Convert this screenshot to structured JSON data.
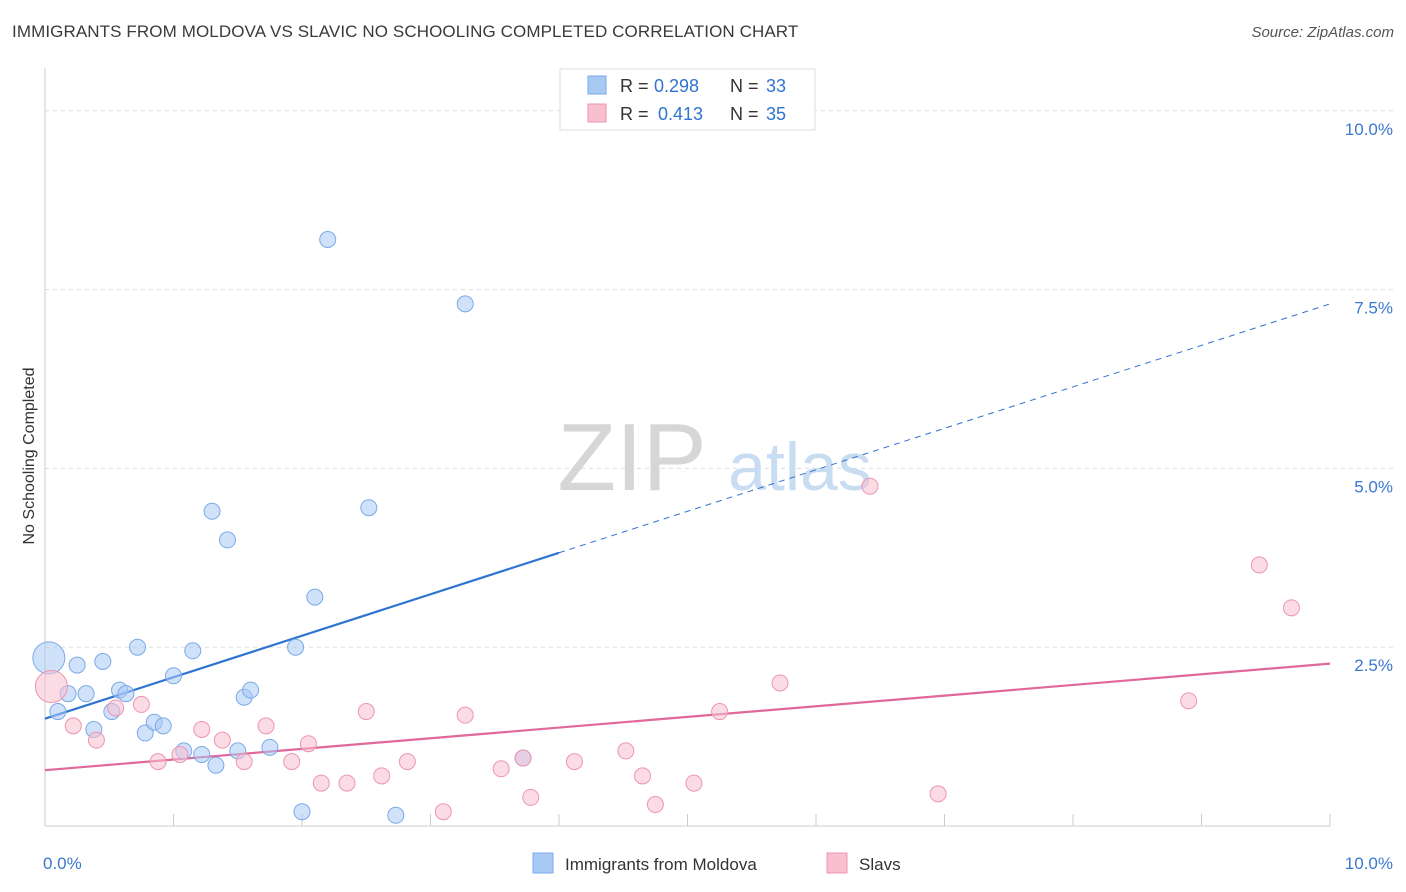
{
  "chart_data": {
    "type": "scatter",
    "title": "IMMIGRANTS FROM MOLDOVA VS SLAVIC NO SCHOOLING COMPLETED CORRELATION CHART",
    "source": "Source: ZipAtlas.com",
    "watermark": {
      "zip": "ZIP",
      "atlas": "atlas"
    },
    "ylabel": "No Schooling Completed",
    "xlim": [
      0,
      10
    ],
    "ylim": [
      0,
      10.5
    ],
    "x_tick_labels": [
      {
        "value": 0,
        "label": "0.0%"
      },
      {
        "value": 10,
        "label": "10.0%"
      }
    ],
    "y_tick_labels": [
      {
        "value": 2.5,
        "label": "2.5%"
      },
      {
        "value": 5.0,
        "label": "5.0%"
      },
      {
        "value": 7.5,
        "label": "7.5%"
      },
      {
        "value": 10.0,
        "label": "10.0%"
      }
    ],
    "legend": [
      {
        "r_label": "R =",
        "r_value": "0.298",
        "n_label": "N =",
        "n_value": "33"
      },
      {
        "r_label": "R =",
        "r_value": "0.413",
        "n_label": "N =",
        "n_value": "35"
      }
    ],
    "series": [
      {
        "name": "Immigrants from Moldova",
        "color": "#a9c9f5",
        "stroke": "#7aaae6",
        "line_color": "#2f74d0",
        "trend": {
          "x0": 0,
          "y0": 1.5,
          "x1": 10,
          "y1": 7.3,
          "solid_until": 4.0
        },
        "points": [
          [
            0.03,
            2.35,
            "big"
          ],
          [
            0.1,
            1.6
          ],
          [
            0.18,
            1.85
          ],
          [
            0.25,
            2.25
          ],
          [
            0.32,
            1.85
          ],
          [
            0.38,
            1.35
          ],
          [
            0.45,
            2.3
          ],
          [
            0.52,
            1.6
          ],
          [
            0.58,
            1.9
          ],
          [
            0.63,
            1.85
          ],
          [
            0.72,
            2.5
          ],
          [
            0.78,
            1.3
          ],
          [
            0.85,
            1.45
          ],
          [
            0.92,
            1.4
          ],
          [
            1.0,
            2.1
          ],
          [
            1.08,
            1.05
          ],
          [
            1.15,
            2.45
          ],
          [
            1.22,
            1.0
          ],
          [
            1.3,
            4.4
          ],
          [
            1.33,
            0.85
          ],
          [
            1.42,
            4.0
          ],
          [
            1.5,
            1.05
          ],
          [
            1.55,
            1.8
          ],
          [
            1.6,
            1.9
          ],
          [
            1.75,
            1.1
          ],
          [
            1.95,
            2.5
          ],
          [
            2.0,
            0.2
          ],
          [
            2.1,
            3.2
          ],
          [
            2.2,
            8.2
          ],
          [
            2.52,
            4.45
          ],
          [
            2.73,
            0.15
          ],
          [
            3.27,
            7.3
          ],
          [
            3.72,
            0.95
          ]
        ]
      },
      {
        "name": "Slavs",
        "color": "#f7bfd0",
        "stroke": "#ec95b1",
        "line_color": "#e0689a",
        "trend": {
          "x0": 0,
          "y0": 0.78,
          "x1": 10,
          "y1": 2.27
        },
        "points": [
          [
            0.05,
            1.95,
            "big"
          ],
          [
            0.22,
            1.4
          ],
          [
            0.4,
            1.2
          ],
          [
            0.55,
            1.65
          ],
          [
            0.75,
            1.7
          ],
          [
            0.88,
            0.9
          ],
          [
            1.05,
            1.0
          ],
          [
            1.22,
            1.35
          ],
          [
            1.38,
            1.2
          ],
          [
            1.55,
            0.9
          ],
          [
            1.72,
            1.4
          ],
          [
            1.92,
            0.9
          ],
          [
            2.05,
            1.15
          ],
          [
            2.15,
            0.6
          ],
          [
            2.35,
            0.6
          ],
          [
            2.5,
            1.6
          ],
          [
            2.62,
            0.7
          ],
          [
            2.82,
            0.9
          ],
          [
            3.1,
            0.2
          ],
          [
            3.27,
            1.55
          ],
          [
            3.55,
            0.8
          ],
          [
            3.72,
            0.95
          ],
          [
            3.78,
            0.4
          ],
          [
            4.12,
            0.9
          ],
          [
            4.52,
            1.05
          ],
          [
            4.65,
            0.7
          ],
          [
            4.75,
            0.3
          ],
          [
            5.05,
            0.6
          ],
          [
            5.25,
            1.6
          ],
          [
            5.72,
            2.0
          ],
          [
            6.42,
            4.75
          ],
          [
            6.95,
            0.45
          ],
          [
            8.9,
            1.75
          ],
          [
            9.45,
            3.65
          ],
          [
            9.7,
            3.05
          ]
        ]
      }
    ]
  }
}
